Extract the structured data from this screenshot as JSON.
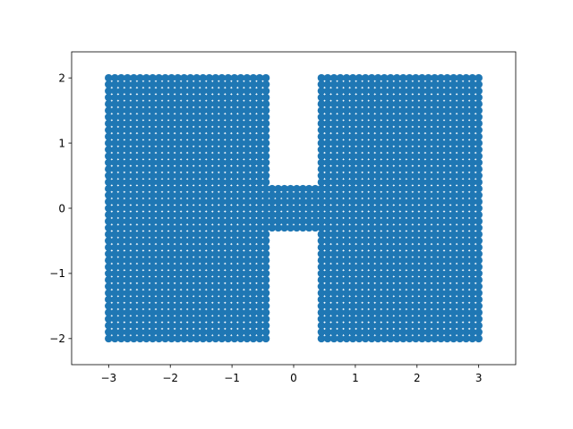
{
  "chart_data": {
    "type": "scatter",
    "title": "",
    "xlabel": "",
    "ylabel": "",
    "xlim": [
      -3.6,
      3.6
    ],
    "ylim": [
      -2.4,
      2.4
    ],
    "grid": false,
    "x_ticks": [
      -3,
      -2,
      -1,
      0,
      1,
      2,
      3
    ],
    "y_ticks": [
      -2,
      -1,
      0,
      1,
      2
    ],
    "x_tick_labels": [
      "−3",
      "−2",
      "−1",
      "0",
      "1",
      "2",
      "3"
    ],
    "y_tick_labels": [
      "−2",
      "−1",
      "0",
      "1",
      "2"
    ],
    "marker_color": "#1f77b4",
    "marker": "circle",
    "point_spacing": 0.1,
    "regions": [
      {
        "x": [
          -3.0,
          -0.45
        ],
        "y": [
          -2.0,
          2.0
        ]
      },
      {
        "x": [
          0.45,
          3.0
        ],
        "y": [
          -2.0,
          2.0
        ]
      },
      {
        "x": [
          -0.45,
          0.45
        ],
        "y": [
          -0.3,
          0.3
        ]
      }
    ]
  }
}
